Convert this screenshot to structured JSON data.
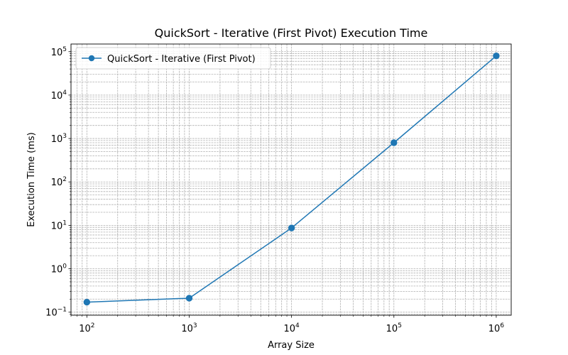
{
  "chart_data": {
    "type": "line",
    "title": "QuickSort - Iterative (First Pivot) Execution Time",
    "xlabel": "Array Size",
    "ylabel": "Execution Time (ms)",
    "xscale": "log",
    "yscale": "log",
    "xlim": [
      70,
      1400000
    ],
    "ylim": [
      0.085,
      150000
    ],
    "grid": true,
    "legend_position": "top-left",
    "x_ticks": [
      {
        "base": "10",
        "exp": "2",
        "value": 100
      },
      {
        "base": "10",
        "exp": "3",
        "value": 1000
      },
      {
        "base": "10",
        "exp": "4",
        "value": 10000
      },
      {
        "base": "10",
        "exp": "5",
        "value": 100000
      },
      {
        "base": "10",
        "exp": "6",
        "value": 1000000
      }
    ],
    "y_ticks": [
      {
        "base": "10",
        "exp": "−1",
        "value": 0.1
      },
      {
        "base": "10",
        "exp": "0",
        "value": 1
      },
      {
        "base": "10",
        "exp": "1",
        "value": 10
      },
      {
        "base": "10",
        "exp": "2",
        "value": 100
      },
      {
        "base": "10",
        "exp": "3",
        "value": 1000
      },
      {
        "base": "10",
        "exp": "4",
        "value": 10000
      },
      {
        "base": "10",
        "exp": "5",
        "value": 100000
      }
    ],
    "series": [
      {
        "name": "QuickSort - Iterative (First Pivot)",
        "color": "#1f77b4",
        "marker": "circle",
        "x": [
          100,
          1000,
          10000,
          100000,
          1000000
        ],
        "y": [
          0.17,
          0.21,
          8.7,
          800,
          80000
        ]
      }
    ]
  }
}
